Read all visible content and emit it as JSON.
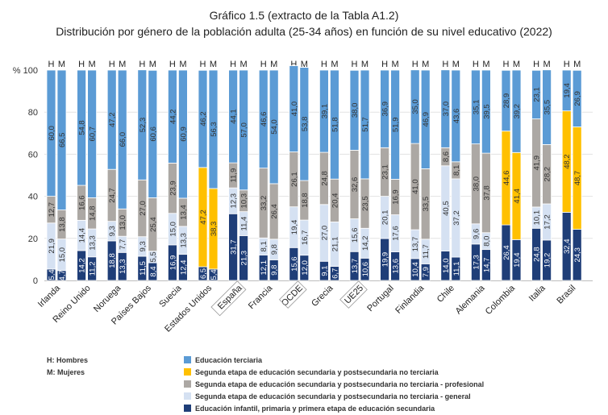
{
  "chart_data": {
    "type": "bar",
    "stacked": true,
    "title": "Gráfico 1.5 (extracto de la Tabla A1.2)",
    "subtitle": "Distribución por género de la población adulta (25-34 años) en función de su nivel educativo (2022)",
    "ylabel": "%",
    "ylim": [
      0,
      100
    ],
    "yticks": [
      0,
      20,
      40,
      60,
      80,
      100
    ],
    "grid": true,
    "bar_labels": [
      "H",
      "M"
    ],
    "gender_legend": [
      "H: Hombres",
      "M: Mujeres"
    ],
    "categories": [
      "Irlanda",
      "Reino Unido",
      "Noruega",
      "Países Bajos",
      "Suecia",
      "Estados Unidos",
      "España",
      "Francia",
      "OCDE",
      "Grecia",
      "UE25",
      "Portugal",
      "Finlandia",
      "Chile",
      "Alemania",
      "Colombia",
      "Italia",
      "Brasil"
    ],
    "boxed_categories": [
      "España",
      "OCDE",
      "UE25"
    ],
    "series": [
      {
        "name": "Educación infantil, primaria y primera etapa de educación secundaria",
        "color": "#1f3e78",
        "H": [
          5.4,
          14.2,
          18.8,
          11.5,
          16.9,
          6.5,
          31.7,
          12.1,
          15.6,
          9.1,
          13.7,
          19.9,
          10.4,
          14.0,
          17.3,
          26.4,
          24.8,
          32.4
        ],
        "M": [
          4.7,
          11.2,
          13.3,
          8.4,
          12.4,
          5.4,
          21.3,
          9.8,
          12.0,
          6.7,
          10.6,
          13.6,
          7.9,
          11.1,
          14.7,
          19.4,
          19.2,
          24.3
        ]
      },
      {
        "name": "Segunda etapa de educación secundaria y postsecundaria no terciaria - general",
        "color": "#d5e1f2",
        "H": [
          21.9,
          14.4,
          9.3,
          9.3,
          15.0,
          null,
          12.3,
          8.1,
          19.4,
          27.0,
          15.6,
          20.1,
          13.7,
          40.5,
          9.6,
          null,
          10.1,
          null
        ],
        "M": [
          15.0,
          13.3,
          7.7,
          5.5,
          13.3,
          null,
          11.4,
          9.8,
          16.7,
          21.1,
          14.2,
          17.6,
          11.7,
          37.2,
          8.0,
          null,
          17.2,
          null
        ]
      },
      {
        "name": "Segunda etapa de educación secundaria y postsecundaria no terciaria - profesional",
        "color": "#aca8a4",
        "H": [
          12.7,
          16.6,
          24.7,
          27.0,
          23.9,
          null,
          11.9,
          33.2,
          26.1,
          24.8,
          32.6,
          23.1,
          41.0,
          8.6,
          38.0,
          null,
          41.9,
          null
        ],
        "M": [
          13.8,
          14.8,
          13.0,
          25.4,
          13.4,
          null,
          10.3,
          26.4,
          18.8,
          20.4,
          23.5,
          16.9,
          33.5,
          8.1,
          37.8,
          null,
          28.2,
          null
        ]
      },
      {
        "name": "Segunda etapa de educación secundaria y postsecundaria no terciaria",
        "color": "#ffc000",
        "H": [
          null,
          null,
          null,
          null,
          null,
          47.2,
          null,
          null,
          null,
          null,
          null,
          null,
          null,
          null,
          null,
          44.6,
          null,
          48.2
        ],
        "M": [
          null,
          null,
          null,
          null,
          null,
          38.3,
          null,
          null,
          null,
          null,
          null,
          null,
          null,
          null,
          null,
          41.4,
          null,
          48.7
        ]
      },
      {
        "name": "Educación terciaria",
        "color": "#5b9bd5",
        "H": [
          60.0,
          54.8,
          47.2,
          52.3,
          44.2,
          46.2,
          44.1,
          46.6,
          41.0,
          39.1,
          38.0,
          36.9,
          35.0,
          37.0,
          35.1,
          28.9,
          23.1,
          19.4
        ],
        "M": [
          66.5,
          60.7,
          66.0,
          60.6,
          60.9,
          56.3,
          57.0,
          54.0,
          53.8,
          51.8,
          51.7,
          51.9,
          46.9,
          43.6,
          39.5,
          39.2,
          35.5,
          26.9
        ]
      }
    ],
    "legend_order": [
      4,
      3,
      2,
      1,
      0
    ]
  }
}
